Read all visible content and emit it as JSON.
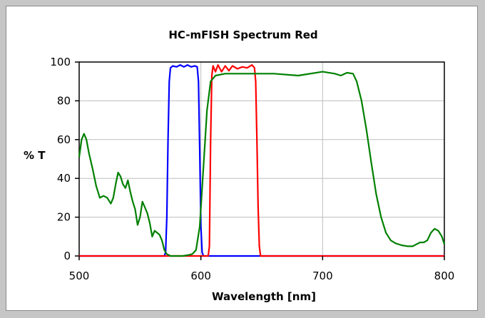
{
  "chart_data": {
    "type": "line",
    "title": "HC-mFISH Spectrum Red",
    "xlabel": "Wavelength [nm]",
    "ylabel": "% T",
    "xlim": [
      500,
      800
    ],
    "ylim": [
      0,
      100
    ],
    "x_ticks": [
      "500",
      "600",
      "700",
      "800"
    ],
    "y_ticks": [
      "0",
      "20",
      "40",
      "60",
      "80",
      "100"
    ],
    "grid": true,
    "legend": "none",
    "series": [
      {
        "color": "#0000ff",
        "points": [
          [
            500,
            0
          ],
          [
            565,
            0
          ],
          [
            570,
            0
          ],
          [
            571,
            2
          ],
          [
            572,
            20
          ],
          [
            573,
            60
          ],
          [
            574,
            90
          ],
          [
            575,
            97
          ],
          [
            577,
            98
          ],
          [
            580,
            97.5
          ],
          [
            583,
            98.5
          ],
          [
            586,
            97.5
          ],
          [
            589,
            98.5
          ],
          [
            592,
            97.5
          ],
          [
            595,
            98
          ],
          [
            597,
            97.5
          ],
          [
            598,
            90
          ],
          [
            599,
            55
          ],
          [
            600,
            15
          ],
          [
            601,
            2
          ],
          [
            602,
            0
          ],
          [
            660,
            0
          ],
          [
            800,
            0
          ]
        ]
      },
      {
        "color": "#ff0000",
        "points": [
          [
            500,
            0
          ],
          [
            606,
            0
          ],
          [
            607,
            5
          ],
          [
            608,
            60
          ],
          [
            609,
            93
          ],
          [
            610,
            98
          ],
          [
            612,
            95
          ],
          [
            614,
            98.5
          ],
          [
            617,
            95
          ],
          [
            620,
            98
          ],
          [
            623,
            95.5
          ],
          [
            626,
            98
          ],
          [
            630,
            96.5
          ],
          [
            634,
            97.5
          ],
          [
            638,
            97
          ],
          [
            642,
            98.5
          ],
          [
            644,
            97
          ],
          [
            645,
            90
          ],
          [
            646,
            60
          ],
          [
            647,
            25
          ],
          [
            648,
            5
          ],
          [
            649,
            0
          ],
          [
            800,
            0
          ]
        ]
      },
      {
        "color": "#008000",
        "points": [
          [
            500,
            51
          ],
          [
            502,
            60
          ],
          [
            504,
            63
          ],
          [
            506,
            60
          ],
          [
            508,
            53
          ],
          [
            511,
            45
          ],
          [
            514,
            36
          ],
          [
            517,
            30
          ],
          [
            520,
            31
          ],
          [
            523,
            30
          ],
          [
            526,
            27
          ],
          [
            528,
            30
          ],
          [
            530,
            37
          ],
          [
            532,
            43
          ],
          [
            534,
            41
          ],
          [
            536,
            37
          ],
          [
            538,
            35
          ],
          [
            540,
            39
          ],
          [
            542,
            33
          ],
          [
            544,
            28
          ],
          [
            546,
            24
          ],
          [
            548,
            16
          ],
          [
            550,
            20
          ],
          [
            552,
            28
          ],
          [
            554,
            25
          ],
          [
            556,
            22
          ],
          [
            558,
            17
          ],
          [
            560,
            10
          ],
          [
            562,
            13
          ],
          [
            564,
            12
          ],
          [
            566,
            11
          ],
          [
            568,
            8
          ],
          [
            570,
            3
          ],
          [
            572,
            1
          ],
          [
            575,
            0
          ],
          [
            580,
            0
          ],
          [
            585,
            0
          ],
          [
            590,
            0.5
          ],
          [
            593,
            1
          ],
          [
            596,
            3
          ],
          [
            599,
            15
          ],
          [
            602,
            45
          ],
          [
            605,
            75
          ],
          [
            608,
            90
          ],
          [
            612,
            93
          ],
          [
            620,
            94
          ],
          [
            640,
            94
          ],
          [
            660,
            94
          ],
          [
            680,
            93
          ],
          [
            700,
            95
          ],
          [
            710,
            94
          ],
          [
            715,
            93
          ],
          [
            720,
            94.5
          ],
          [
            725,
            94
          ],
          [
            728,
            90
          ],
          [
            732,
            80
          ],
          [
            736,
            65
          ],
          [
            740,
            48
          ],
          [
            744,
            32
          ],
          [
            748,
            20
          ],
          [
            752,
            12
          ],
          [
            756,
            8
          ],
          [
            760,
            6.5
          ],
          [
            765,
            5.5
          ],
          [
            770,
            5
          ],
          [
            774,
            5
          ],
          [
            777,
            6
          ],
          [
            780,
            7
          ],
          [
            783,
            7
          ],
          [
            786,
            8
          ],
          [
            789,
            12
          ],
          [
            792,
            14
          ],
          [
            795,
            13
          ],
          [
            798,
            10
          ],
          [
            800,
            6
          ]
        ]
      }
    ]
  }
}
